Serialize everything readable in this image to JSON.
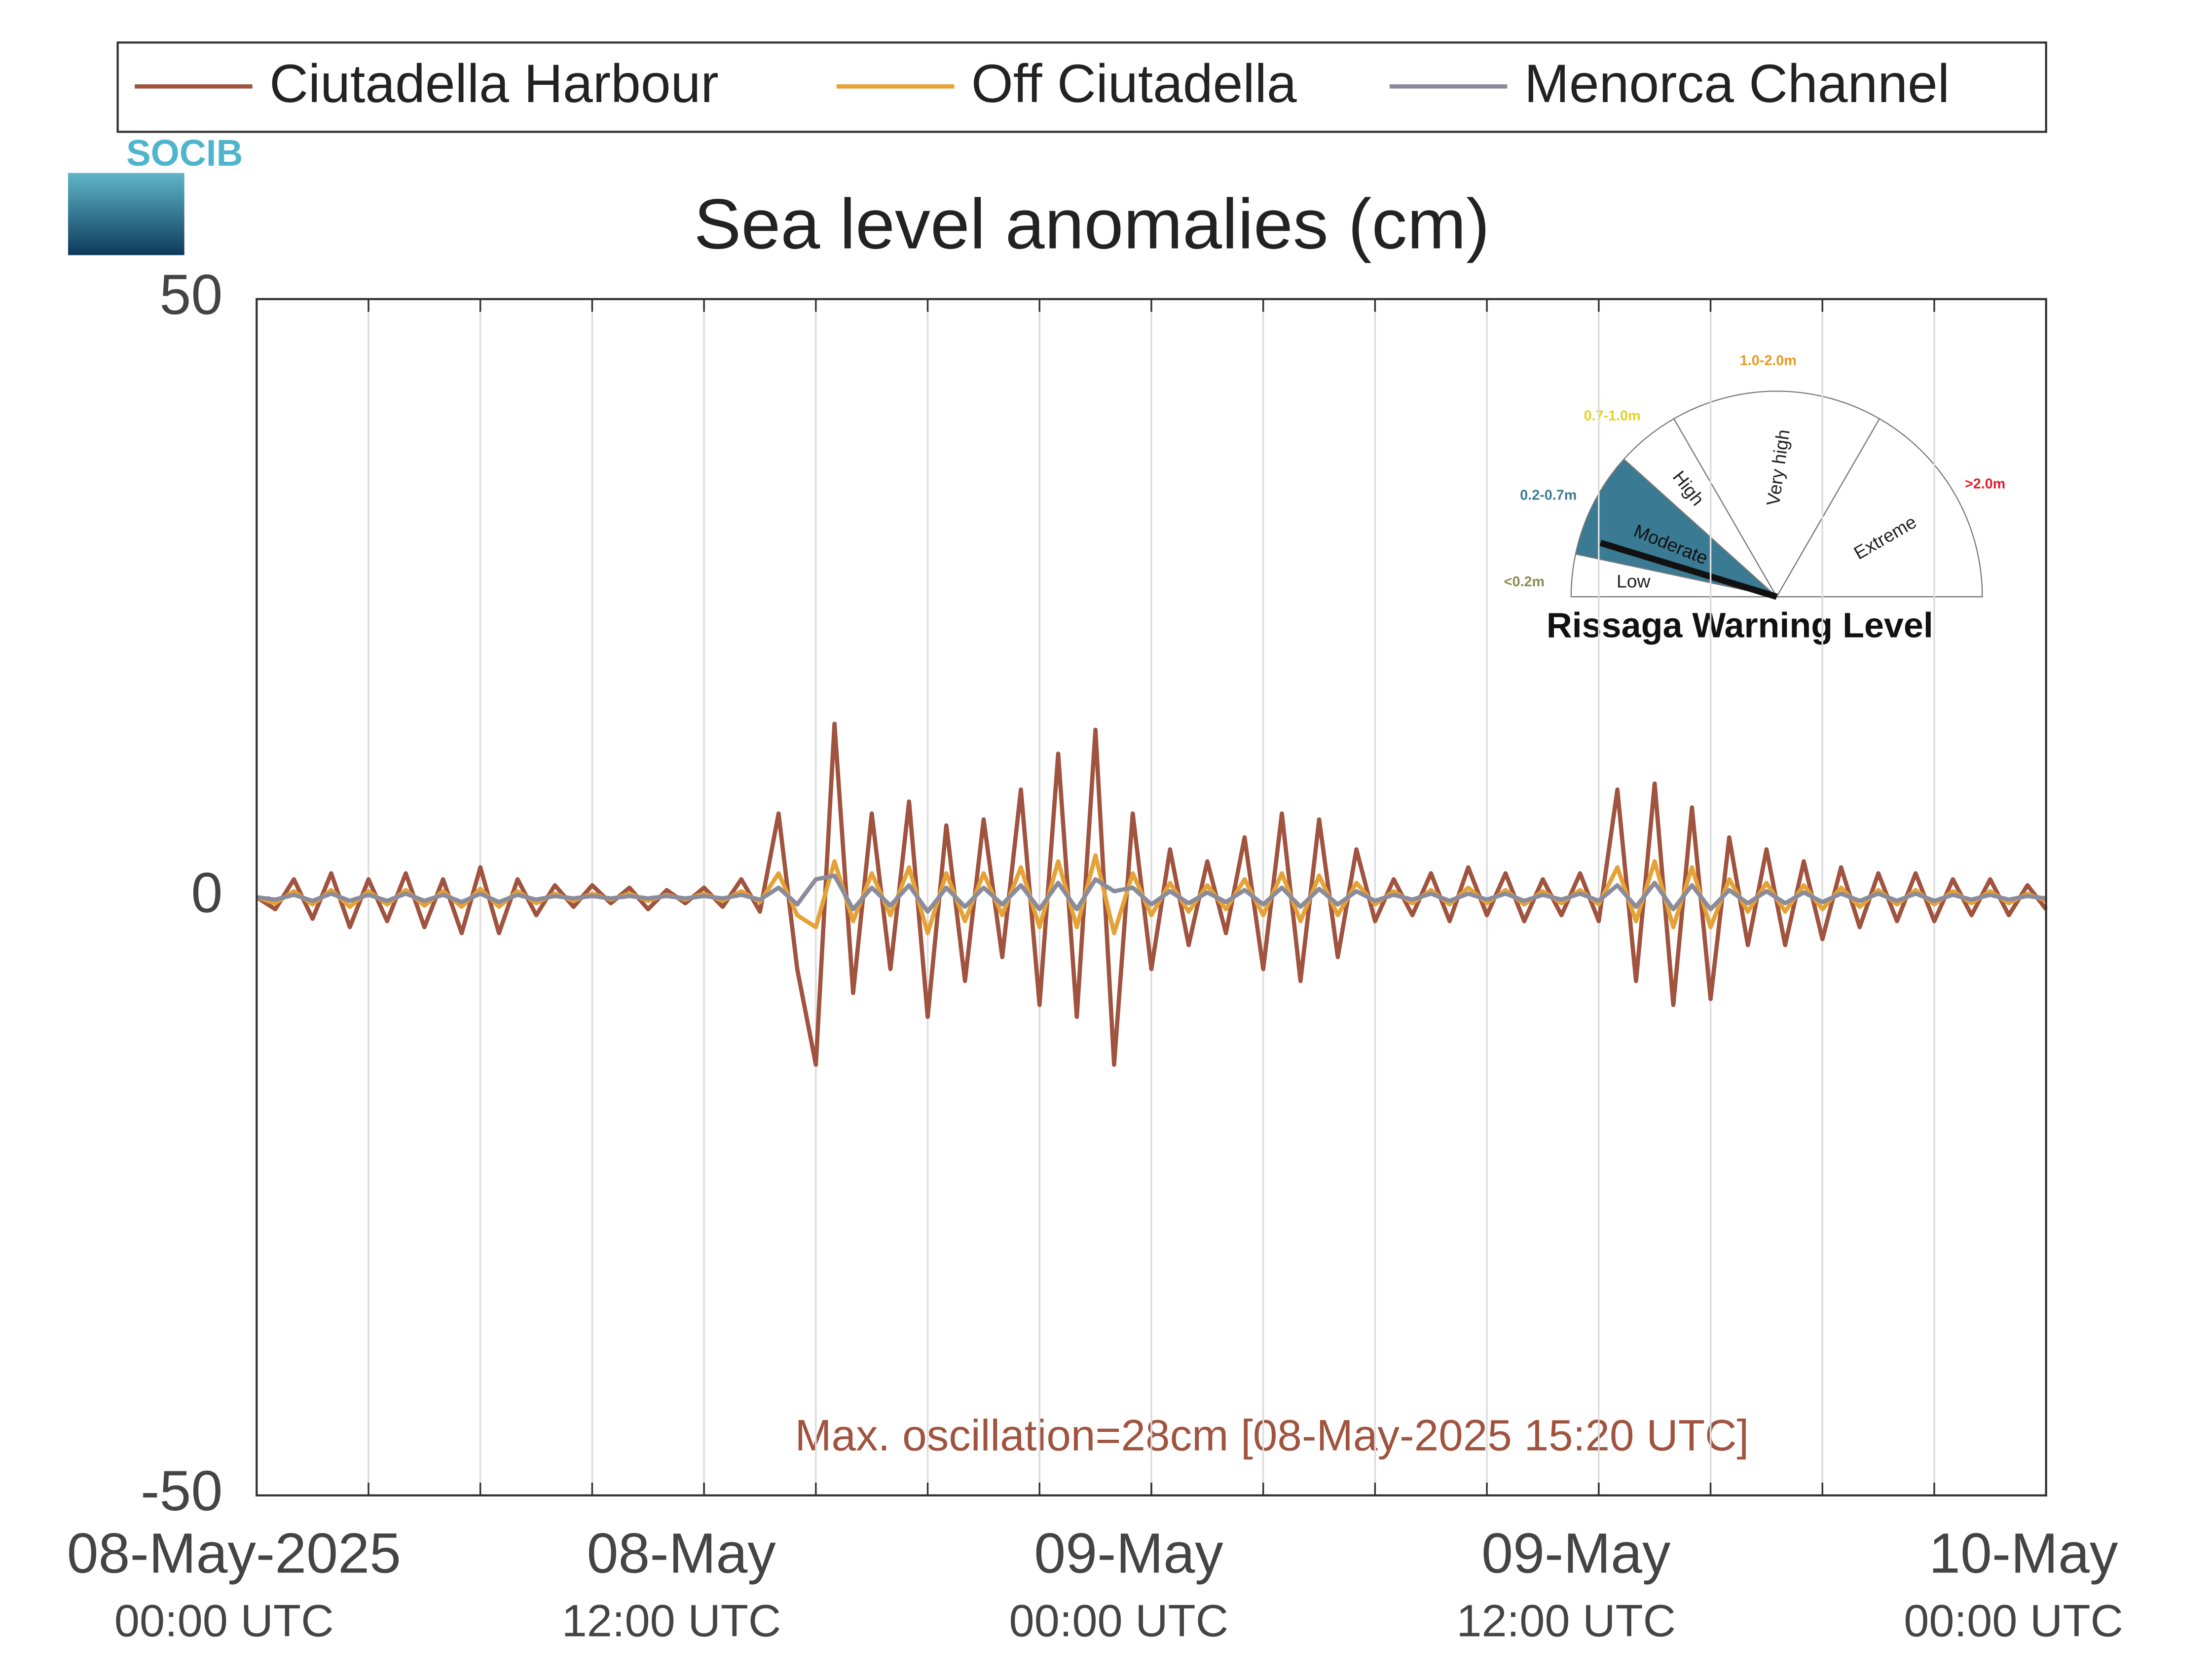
{
  "chart_data": {
    "type": "line",
    "title": "Sea level anomalies (cm)",
    "annotation": "Max. oscillation=28cm [08-May-2025 15:20 UTC]",
    "logo": "SOCIB",
    "x": [
      "2025-05-08T00:00",
      "2025-05-08T00:30",
      "2025-05-08T01:00",
      "2025-05-08T01:30",
      "2025-05-08T02:00",
      "2025-05-08T02:30",
      "2025-05-08T03:00",
      "2025-05-08T03:30",
      "2025-05-08T04:00",
      "2025-05-08T04:30",
      "2025-05-08T05:00",
      "2025-05-08T05:30",
      "2025-05-08T06:00",
      "2025-05-08T06:30",
      "2025-05-08T07:00",
      "2025-05-08T07:30",
      "2025-05-08T08:00",
      "2025-05-08T08:30",
      "2025-05-08T09:00",
      "2025-05-08T09:30",
      "2025-05-08T10:00",
      "2025-05-08T10:30",
      "2025-05-08T11:00",
      "2025-05-08T11:30",
      "2025-05-08T12:00",
      "2025-05-08T12:30",
      "2025-05-08T13:00",
      "2025-05-08T13:30",
      "2025-05-08T14:00",
      "2025-05-08T14:30",
      "2025-05-08T15:00",
      "2025-05-08T15:30",
      "2025-05-08T16:00",
      "2025-05-08T16:30",
      "2025-05-08T17:00",
      "2025-05-08T17:30",
      "2025-05-08T18:00",
      "2025-05-08T18:30",
      "2025-05-08T19:00",
      "2025-05-08T19:30",
      "2025-05-08T20:00",
      "2025-05-08T20:30",
      "2025-05-08T21:00",
      "2025-05-08T21:30",
      "2025-05-08T22:00",
      "2025-05-08T22:30",
      "2025-05-08T23:00",
      "2025-05-08T23:30",
      "2025-05-09T00:00",
      "2025-05-09T00:30",
      "2025-05-09T01:00",
      "2025-05-09T01:30",
      "2025-05-09T02:00",
      "2025-05-09T02:30",
      "2025-05-09T03:00",
      "2025-05-09T03:30",
      "2025-05-09T04:00",
      "2025-05-09T04:30",
      "2025-05-09T05:00",
      "2025-05-09T05:30",
      "2025-05-09T06:00",
      "2025-05-09T06:30",
      "2025-05-09T07:00",
      "2025-05-09T07:30",
      "2025-05-09T08:00",
      "2025-05-09T08:30",
      "2025-05-09T09:00",
      "2025-05-09T09:30",
      "2025-05-09T10:00",
      "2025-05-09T10:30",
      "2025-05-09T11:00",
      "2025-05-09T11:30",
      "2025-05-09T12:00",
      "2025-05-09T12:30",
      "2025-05-09T13:00",
      "2025-05-09T13:30",
      "2025-05-09T14:00",
      "2025-05-09T14:30",
      "2025-05-09T15:00",
      "2025-05-09T15:30",
      "2025-05-09T16:00",
      "2025-05-09T16:30",
      "2025-05-09T17:00",
      "2025-05-09T17:30",
      "2025-05-09T18:00",
      "2025-05-09T18:30",
      "2025-05-09T19:00",
      "2025-05-09T19:30",
      "2025-05-09T20:00",
      "2025-05-09T20:30",
      "2025-05-09T21:00",
      "2025-05-09T21:30",
      "2025-05-09T22:00",
      "2025-05-09T22:30",
      "2025-05-09T23:00",
      "2025-05-09T23:30",
      "2025-05-10T00:00"
    ],
    "series": [
      {
        "name": "Ciutadella Harbour",
        "color": "#a0533e",
        "values": [
          0,
          -1,
          1.5,
          -1.8,
          2,
          -2.5,
          1.5,
          -2,
          2,
          -2.5,
          1.5,
          -3,
          2.5,
          -3,
          1.5,
          -1.5,
          1,
          -0.8,
          1,
          -0.5,
          0.8,
          -1,
          0.6,
          -0.5,
          0.8,
          -0.8,
          1.5,
          -1.2,
          7,
          -6,
          -14,
          14.5,
          -8,
          7,
          -6,
          8,
          -10,
          6,
          -7,
          6.5,
          -5,
          9,
          -9,
          12,
          -10,
          14,
          -14,
          7,
          -6,
          4,
          -4,
          3,
          -3,
          5,
          -6,
          7,
          -7,
          6.5,
          -5,
          4,
          -2,
          1.5,
          -1.5,
          2,
          -2,
          2.5,
          -1.5,
          2,
          -2,
          1.5,
          -1.5,
          2,
          -2,
          9,
          -7,
          9.5,
          -9,
          7.5,
          -8.5,
          5,
          -4,
          4,
          -4,
          3,
          -3.5,
          2.5,
          -2.5,
          2,
          -2,
          2,
          -2,
          1.5,
          -1.5,
          1.5,
          -1.5,
          1,
          -1
        ]
      },
      {
        "name": "Off Ciutadella",
        "color": "#e5a236",
        "values": [
          0,
          -0.5,
          0.5,
          -0.6,
          0.6,
          -0.8,
          0.5,
          -0.6,
          0.6,
          -0.7,
          0.5,
          -0.8,
          0.7,
          -0.8,
          0.5,
          -0.5,
          0.3,
          -0.3,
          0.3,
          -0.2,
          0.3,
          -0.3,
          0.2,
          -0.2,
          0.3,
          -0.3,
          0.5,
          -0.4,
          2,
          -1.5,
          -2.5,
          3,
          -2,
          2,
          -1.5,
          2.5,
          -3,
          2,
          -2,
          2,
          -1.5,
          2.5,
          -2.5,
          3,
          -2.5,
          3.5,
          -3,
          2,
          -1.5,
          1.2,
          -1.2,
          1,
          -1,
          1.5,
          -1.5,
          2,
          -2,
          1.8,
          -1.5,
          1.2,
          -0.6,
          0.5,
          -0.5,
          0.6,
          -0.6,
          0.8,
          -0.5,
          0.6,
          -0.6,
          0.5,
          -0.5,
          0.6,
          -0.6,
          2.5,
          -2,
          3,
          -2.5,
          2.5,
          -2.5,
          1.5,
          -1.2,
          1.2,
          -1.2,
          1,
          -1,
          0.8,
          -0.8,
          0.6,
          -0.6,
          0.6,
          -0.6,
          0.5,
          -0.5,
          0.5,
          -0.5,
          0.3,
          -0.3
        ]
      },
      {
        "name": "Menorca Channel",
        "color": "#8a8b9b",
        "values": [
          0,
          -0.2,
          0.2,
          -0.3,
          0.3,
          -0.3,
          0.2,
          -0.3,
          0.3,
          -0.3,
          0.2,
          -0.4,
          0.3,
          -0.4,
          0.2,
          -0.2,
          0.1,
          -0.1,
          0.1,
          -0.1,
          0.1,
          -0.1,
          0.1,
          -0.1,
          0.1,
          -0.1,
          0.2,
          -0.2,
          0.8,
          -0.6,
          1.5,
          1.8,
          -1,
          0.8,
          -0.7,
          1,
          -1.2,
          0.8,
          -0.8,
          0.8,
          -0.6,
          1,
          -1,
          1.2,
          -1,
          1.5,
          0.5,
          0.8,
          -0.6,
          0.5,
          -0.5,
          0.4,
          -0.4,
          0.6,
          -0.6,
          0.8,
          -0.8,
          0.7,
          -0.6,
          0.5,
          -0.3,
          0.2,
          -0.2,
          0.3,
          -0.3,
          0.3,
          -0.2,
          0.3,
          -0.3,
          0.2,
          -0.2,
          0.3,
          -0.3,
          1,
          -0.8,
          1.2,
          -1,
          1,
          -1,
          0.6,
          -0.5,
          0.5,
          -0.5,
          0.4,
          -0.4,
          0.3,
          -0.3,
          0.3,
          -0.3,
          0.3,
          -0.3,
          0.2,
          -0.2,
          0.2,
          -0.2,
          0.1,
          -0.1
        ]
      }
    ],
    "xlim": [
      "2025-05-08T00:00",
      "2025-05-10T00:00"
    ],
    "xticks": [
      {
        "value": "2025-05-08T00:00",
        "label": [
          "08-May-2025",
          "00:00 UTC"
        ]
      },
      {
        "value": "2025-05-08T12:00",
        "label": [
          "08-May",
          "12:00 UTC"
        ]
      },
      {
        "value": "2025-05-09T00:00",
        "label": [
          "09-May",
          "00:00 UTC"
        ]
      },
      {
        "value": "2025-05-09T12:00",
        "label": [
          "09-May",
          "12:00 UTC"
        ]
      },
      {
        "value": "2025-05-10T00:00",
        "label": [
          "10-May",
          "00:00 UTC"
        ]
      }
    ],
    "xgrid": [
      "2025-05-08T03:00",
      "2025-05-08T06:00",
      "2025-05-08T09:00",
      "2025-05-08T12:00",
      "2025-05-08T15:00",
      "2025-05-08T18:00",
      "2025-05-08T21:00",
      "2025-05-09T00:00",
      "2025-05-09T03:00",
      "2025-05-09T06:00",
      "2025-05-09T09:00",
      "2025-05-09T12:00",
      "2025-05-09T15:00",
      "2025-05-09T18:00",
      "2025-05-09T21:00"
    ],
    "ylim": [
      -50,
      50
    ],
    "yticks": [
      -50,
      0,
      50
    ],
    "grid": true,
    "inset": {
      "title": "Rissaga Warning Level",
      "levels": [
        {
          "name": "Low",
          "range": "<0.2m",
          "color": "#8c8c55"
        },
        {
          "name": "Moderate",
          "range": "0.2-0.7m",
          "color": "#3d7a94"
        },
        {
          "name": "High",
          "range": "0.7-1.0m",
          "color": "#e3d21e"
        },
        {
          "name": "Very high",
          "range": "1.0-2.0m",
          "color": "#e8981f"
        },
        {
          "name": "Extreme",
          "range": ">2.0m",
          "color": "#e0202a"
        }
      ]
    }
  }
}
